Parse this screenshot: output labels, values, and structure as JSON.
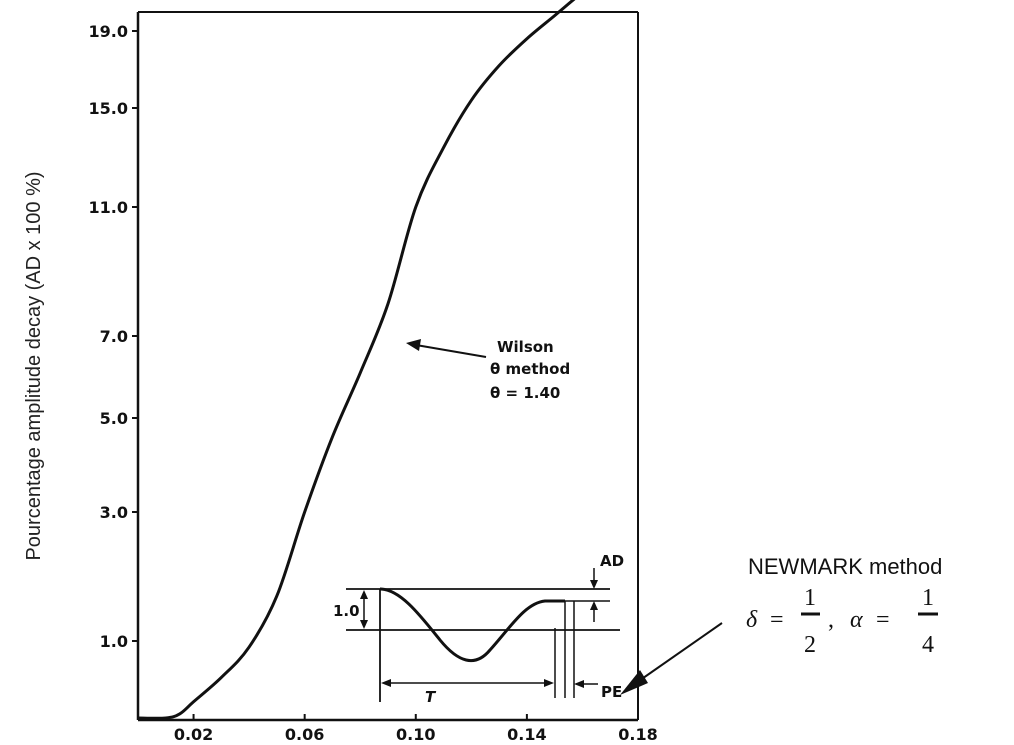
{
  "chart_data": {
    "type": "line",
    "ylabel": "Pourcentage amplitude decay (AD x 100 %)",
    "x_ticks": [
      "0.02",
      "0.06",
      "0.10",
      "0.14",
      "0.18"
    ],
    "y_ticks": [
      "1.0",
      "3.0",
      "5.0",
      "7.0",
      "11.0",
      "15.0",
      "19.0"
    ],
    "xlim": [
      0.0,
      0.18
    ],
    "series": [
      {
        "x": [
          0.0,
          0.01,
          0.015,
          0.02,
          0.03,
          0.04,
          0.05,
          0.06,
          0.07,
          0.08,
          0.09,
          0.1,
          0.11,
          0.12,
          0.13,
          0.14,
          0.15,
          0.16,
          0.17,
          0.18
        ],
        "y_tick_index": [
          -0.65,
          -0.64,
          -0.6,
          -0.5,
          -0.3,
          -0.05,
          0.35,
          1.0,
          1.8,
          2.55,
          3.25,
          4.0,
          4.6,
          5.1,
          5.55,
          5.9,
          6.2,
          6.5,
          6.75,
          7.0
        ]
      }
    ],
    "annotations": {
      "wilson": [
        "Wilson",
        "θ method",
        "θ = 1.40"
      ],
      "newmark_title": "NEWMARK method",
      "delta_symbol": "δ",
      "alpha_symbol": "α",
      "equals": "=",
      "comma": ",",
      "frac_num": "1",
      "delta_den": "2",
      "alpha_den": "4"
    },
    "inset": {
      "amplitude_label": "1.0",
      "period_label": "T",
      "ad_label": "AD",
      "pe_label": "PE"
    }
  }
}
